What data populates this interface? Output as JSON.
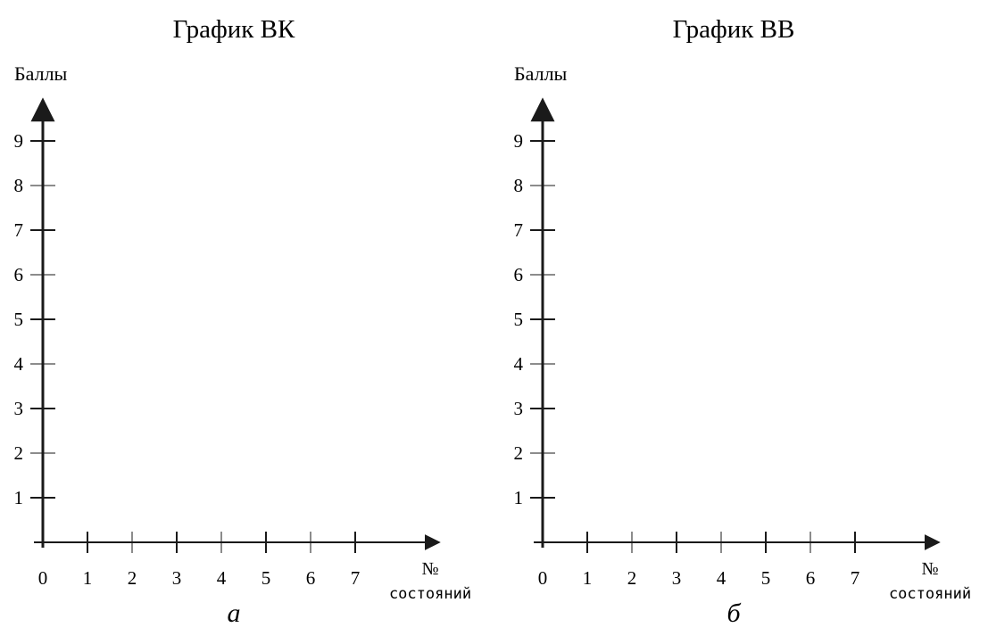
{
  "chart_data": [
    {
      "type": "line",
      "panel_label": "а",
      "title": "График ВК",
      "ylabel": "Баллы",
      "xlabel_line1": "№",
      "xlabel_line2": "состояний",
      "x_ticks": [
        "0",
        "1",
        "2",
        "3",
        "4",
        "5",
        "6",
        "7"
      ],
      "y_ticks": [
        "1",
        "2",
        "3",
        "4",
        "5",
        "6",
        "7",
        "8",
        "9"
      ],
      "xlim": [
        0,
        8.9
      ],
      "ylim": [
        0,
        10
      ],
      "series": [],
      "grid": false,
      "axis_color": "#1a1a1a"
    },
    {
      "type": "line",
      "panel_label": "б",
      "title": "График ВВ",
      "ylabel": "Баллы",
      "xlabel_line1": "№",
      "xlabel_line2": "состояний",
      "x_ticks": [
        "0",
        "1",
        "2",
        "3",
        "4",
        "5",
        "6",
        "7"
      ],
      "y_ticks": [
        "1",
        "2",
        "3",
        "4",
        "5",
        "6",
        "7",
        "8",
        "9"
      ],
      "xlim": [
        0,
        8.9
      ],
      "ylim": [
        0,
        10
      ],
      "series": [],
      "grid": false,
      "axis_color": "#1a1a1a"
    }
  ]
}
